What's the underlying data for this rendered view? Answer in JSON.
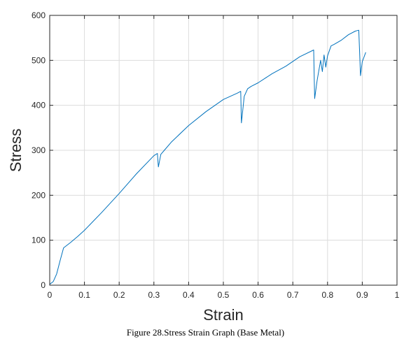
{
  "caption": "Figure 28.Stress Strain Graph (Base Metal)",
  "colors": {
    "line": "#0072BD",
    "grid": "#dcdcdc",
    "axis": "#262626",
    "background": "#ffffff"
  },
  "chart_data": {
    "type": "line",
    "title": "",
    "xlabel": "Strain",
    "ylabel": "Stress",
    "xlim": [
      0,
      1
    ],
    "ylim": [
      0,
      600
    ],
    "xticks": [
      0,
      0.1,
      0.2,
      0.3,
      0.4,
      0.5,
      0.6,
      0.7,
      0.8,
      0.9,
      1
    ],
    "xtick_labels": [
      "0",
      "0.1",
      "0.2",
      "0.3",
      "0.4",
      "0.5",
      "0.6",
      "0.7",
      "0.8",
      "0.9",
      "1"
    ],
    "yticks": [
      0,
      100,
      200,
      300,
      400,
      500,
      600
    ],
    "ytick_labels": [
      "0",
      "100",
      "200",
      "300",
      "400",
      "500",
      "600"
    ],
    "grid": true,
    "box": true,
    "series": [
      {
        "x": [
          0,
          0.01,
          0.02,
          0.03,
          0.04,
          0.06,
          0.08,
          0.1,
          0.15,
          0.2,
          0.25,
          0.3,
          0.31,
          0.313,
          0.32,
          0.33,
          0.35,
          0.4,
          0.45,
          0.5,
          0.52,
          0.54,
          0.55,
          0.552,
          0.56,
          0.57,
          0.58,
          0.6,
          0.64,
          0.68,
          0.72,
          0.76,
          0.763,
          0.77,
          0.78,
          0.785,
          0.79,
          0.795,
          0.8,
          0.81,
          0.82,
          0.84,
          0.86,
          0.88,
          0.89,
          0.895,
          0.9,
          0.91
        ],
        "y": [
          2,
          8,
          25,
          55,
          83,
          95,
          108,
          122,
          162,
          204,
          248,
          288,
          293,
          263,
          291,
          300,
          318,
          355,
          386,
          413,
          420,
          427,
          431,
          361,
          420,
          437,
          442,
          450,
          470,
          487,
          508,
          523,
          415,
          455,
          500,
          475,
          512,
          485,
          510,
          532,
          536,
          545,
          557,
          565,
          567,
          466,
          497,
          518
        ]
      }
    ]
  }
}
